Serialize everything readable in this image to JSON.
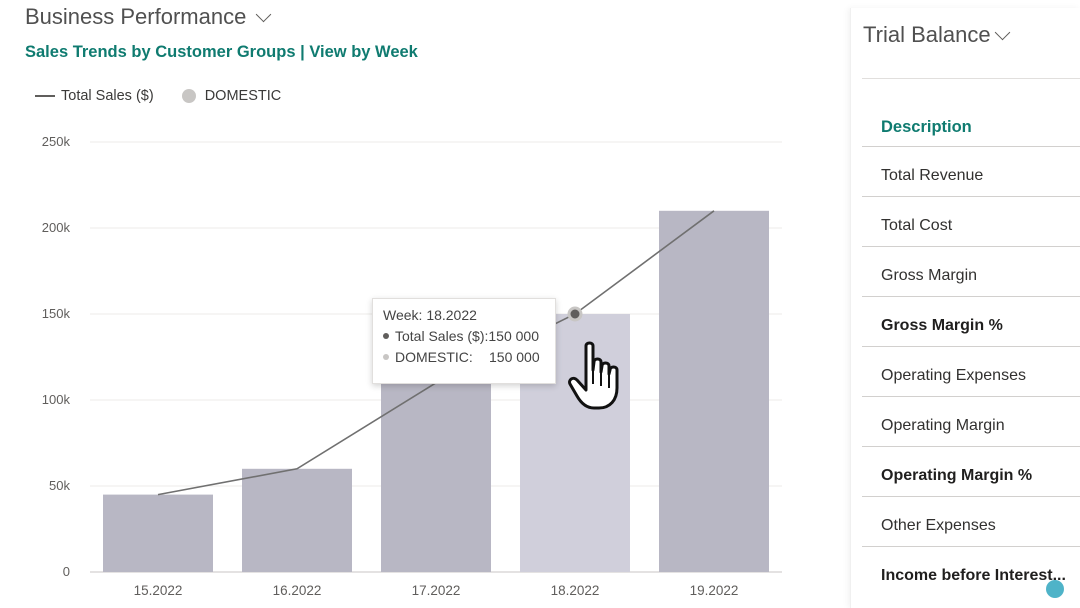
{
  "left_card": {
    "title": "Business Performance",
    "subtitle_left": "Sales Trends by Customer Groups",
    "subtitle_sep": "|",
    "subtitle_right": "View by Week",
    "legend": {
      "line_label": "Total Sales ($)",
      "dot_label": "DOMESTIC"
    }
  },
  "chart_data": {
    "type": "bar",
    "categories": [
      "15.2022",
      "16.2022",
      "17.2022",
      "18.2022",
      "19.2022"
    ],
    "series": [
      {
        "name": "DOMESTIC",
        "type": "bar",
        "values": [
          45000,
          60000,
          110000,
          150000,
          210000
        ]
      },
      {
        "name": "Total Sales ($)",
        "type": "line",
        "values": [
          45000,
          60000,
          110000,
          150000,
          210000
        ]
      }
    ],
    "yticks": [
      "250k",
      "200k",
      "150k",
      "100k",
      "50k",
      "0"
    ],
    "ylim": [
      0,
      250000
    ],
    "grid": true,
    "legend": "top-left",
    "highlight_index": 3
  },
  "tooltip": {
    "title": "Week: 18.2022",
    "row1_label": "Total Sales ($):",
    "row1_value": "150 000",
    "row2_label": "DOMESTIC:",
    "row2_value": "150 000"
  },
  "right_card": {
    "title": "Trial Balance",
    "header": "Description",
    "rows": [
      {
        "label": "Total Revenue",
        "bold": false
      },
      {
        "label": "Total Cost",
        "bold": false
      },
      {
        "label": "Gross Margin",
        "bold": false
      },
      {
        "label": "Gross Margin %",
        "bold": true
      },
      {
        "label": "Operating Expenses",
        "bold": false
      },
      {
        "label": "Operating Margin",
        "bold": false
      },
      {
        "label": "Operating Margin %",
        "bold": true
      },
      {
        "label": "Other Expenses",
        "bold": false
      },
      {
        "label": "Income before Interest...",
        "bold": true
      }
    ]
  },
  "colors": {
    "accent": "#0f7b70",
    "bar": "#b8b7c4",
    "bar_highlight": "#d0cfdb",
    "line": "#707070"
  }
}
